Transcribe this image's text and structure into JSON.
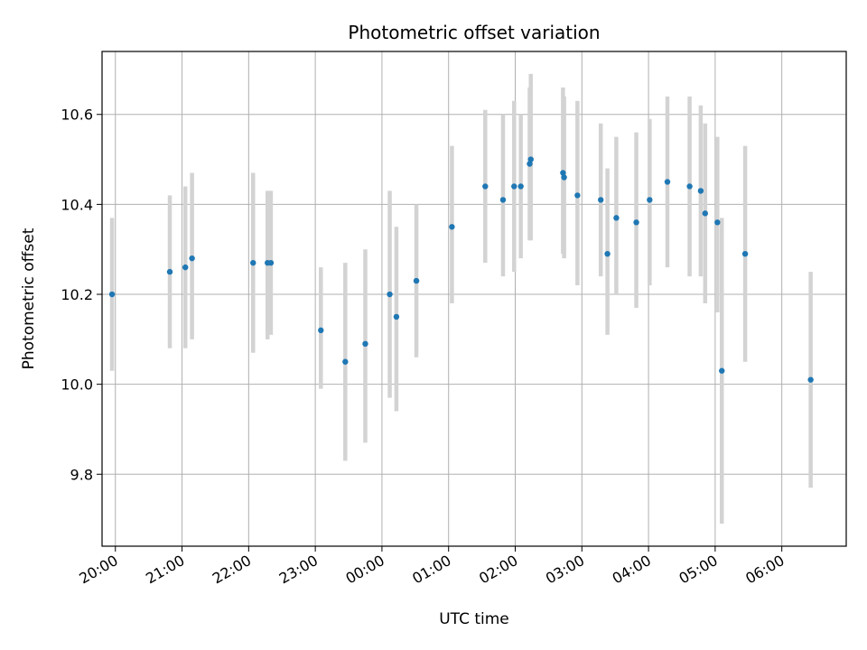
{
  "chart_data": {
    "type": "scatter",
    "title": "Photometric offset variation",
    "xlabel": "UTC time",
    "ylabel": "Photometric offset",
    "x_type": "time",
    "xlim": [
      "19:48",
      "06:58"
    ],
    "ylim": [
      9.64,
      10.74
    ],
    "x_ticks": [
      "20:00",
      "21:00",
      "22:00",
      "23:00",
      "00:00",
      "01:00",
      "02:00",
      "03:00",
      "04:00",
      "05:00",
      "06:00"
    ],
    "y_ticks": [
      "9.8",
      "10.0",
      "10.2",
      "10.4",
      "10.6"
    ],
    "grid": true,
    "legend": "none",
    "marker_color": "#1f77b4",
    "errorbar_color": "#d3d3d3",
    "series": [
      {
        "points": [
          {
            "x": "19:57",
            "y": 10.2,
            "yerr_low": 10.03,
            "yerr_high": 10.37
          },
          {
            "x": "20:49",
            "y": 10.25,
            "yerr_low": 10.08,
            "yerr_high": 10.42
          },
          {
            "x": "21:03",
            "y": 10.26,
            "yerr_low": 10.08,
            "yerr_high": 10.44
          },
          {
            "x": "21:09",
            "y": 10.28,
            "yerr_low": 10.1,
            "yerr_high": 10.47
          },
          {
            "x": "22:04",
            "y": 10.27,
            "yerr_low": 10.07,
            "yerr_high": 10.47
          },
          {
            "x": "22:17",
            "y": 10.27,
            "yerr_low": 10.1,
            "yerr_high": 10.43
          },
          {
            "x": "22:20",
            "y": 10.27,
            "yerr_low": 10.11,
            "yerr_high": 10.43
          },
          {
            "x": "23:05",
            "y": 10.12,
            "yerr_low": 9.99,
            "yerr_high": 10.26
          },
          {
            "x": "23:27",
            "y": 10.05,
            "yerr_low": 9.83,
            "yerr_high": 10.27
          },
          {
            "x": "23:45",
            "y": 10.09,
            "yerr_low": 9.87,
            "yerr_high": 10.3
          },
          {
            "x": "00:07",
            "y": 10.2,
            "yerr_low": 9.97,
            "yerr_high": 10.43
          },
          {
            "x": "00:13",
            "y": 10.15,
            "yerr_low": 9.94,
            "yerr_high": 10.35
          },
          {
            "x": "00:31",
            "y": 10.23,
            "yerr_low": 10.06,
            "yerr_high": 10.4
          },
          {
            "x": "01:03",
            "y": 10.35,
            "yerr_low": 10.18,
            "yerr_high": 10.53
          },
          {
            "x": "01:33",
            "y": 10.44,
            "yerr_low": 10.27,
            "yerr_high": 10.61
          },
          {
            "x": "01:49",
            "y": 10.41,
            "yerr_low": 10.24,
            "yerr_high": 10.6
          },
          {
            "x": "01:59",
            "y": 10.44,
            "yerr_low": 10.25,
            "yerr_high": 10.63
          },
          {
            "x": "02:05",
            "y": 10.44,
            "yerr_low": 10.28,
            "yerr_high": 10.6
          },
          {
            "x": "02:13",
            "y": 10.49,
            "yerr_low": 10.32,
            "yerr_high": 10.66
          },
          {
            "x": "02:14",
            "y": 10.5,
            "yerr_low": 10.32,
            "yerr_high": 10.69
          },
          {
            "x": "02:43",
            "y": 10.47,
            "yerr_low": 10.29,
            "yerr_high": 10.66
          },
          {
            "x": "02:44",
            "y": 10.46,
            "yerr_low": 10.28,
            "yerr_high": 10.64
          },
          {
            "x": "02:56",
            "y": 10.42,
            "yerr_low": 10.22,
            "yerr_high": 10.63
          },
          {
            "x": "03:17",
            "y": 10.41,
            "yerr_low": 10.24,
            "yerr_high": 10.58
          },
          {
            "x": "03:23",
            "y": 10.29,
            "yerr_low": 10.11,
            "yerr_high": 10.48
          },
          {
            "x": "03:31",
            "y": 10.37,
            "yerr_low": 10.2,
            "yerr_high": 10.55
          },
          {
            "x": "03:49",
            "y": 10.36,
            "yerr_low": 10.17,
            "yerr_high": 10.56
          },
          {
            "x": "04:01",
            "y": 10.41,
            "yerr_low": 10.22,
            "yerr_high": 10.59
          },
          {
            "x": "04:17",
            "y": 10.45,
            "yerr_low": 10.26,
            "yerr_high": 10.64
          },
          {
            "x": "04:37",
            "y": 10.44,
            "yerr_low": 10.24,
            "yerr_high": 10.64
          },
          {
            "x": "04:47",
            "y": 10.43,
            "yerr_low": 10.24,
            "yerr_high": 10.62
          },
          {
            "x": "04:51",
            "y": 10.38,
            "yerr_low": 10.18,
            "yerr_high": 10.58
          },
          {
            "x": "05:02",
            "y": 10.36,
            "yerr_low": 10.16,
            "yerr_high": 10.55
          },
          {
            "x": "05:06",
            "y": 10.03,
            "yerr_low": 9.69,
            "yerr_high": 10.37
          },
          {
            "x": "05:27",
            "y": 10.29,
            "yerr_low": 10.05,
            "yerr_high": 10.53
          },
          {
            "x": "06:26",
            "y": 10.01,
            "yerr_low": 9.77,
            "yerr_high": 10.25
          }
        ]
      }
    ]
  }
}
